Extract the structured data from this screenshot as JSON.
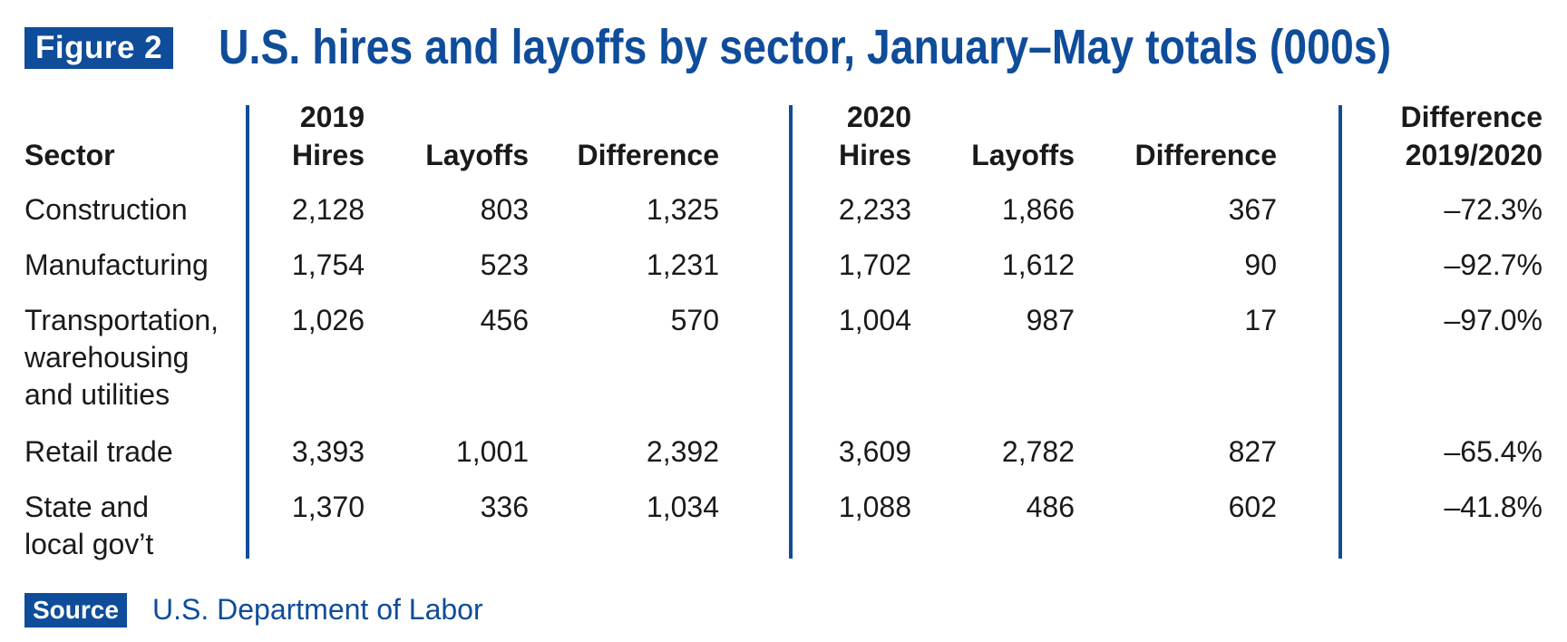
{
  "figure_label": "Figure 2",
  "title": "U.S. hires and layoffs by sector, January–May totals (000s)",
  "headers": {
    "sector": "Sector",
    "year_2019": "2019",
    "year_2020": "2020",
    "hires": "Hires",
    "layoffs": "Layoffs",
    "difference": "Difference",
    "diff_pct_line1": "Difference",
    "diff_pct_line2": "2019/2020"
  },
  "rows": [
    {
      "sector_lines": [
        "Construction"
      ],
      "hires_2019": "2,128",
      "layoffs_2019": "803",
      "diff_2019": "1,325",
      "hires_2020": "2,233",
      "layoffs_2020": "1,866",
      "diff_2020": "367",
      "diff_pct": "–72.3%"
    },
    {
      "sector_lines": [
        "Manufacturing"
      ],
      "hires_2019": "1,754",
      "layoffs_2019": "523",
      "diff_2019": "1,231",
      "hires_2020": "1,702",
      "layoffs_2020": "1,612",
      "diff_2020": "90",
      "diff_pct": "–92.7%"
    },
    {
      "sector_lines": [
        "Transportation,",
        "warehousing",
        "and utilities"
      ],
      "hires_2019": "1,026",
      "layoffs_2019": "456",
      "diff_2019": "570",
      "hires_2020": "1,004",
      "layoffs_2020": "987",
      "diff_2020": "17",
      "diff_pct": "–97.0%"
    },
    {
      "sector_lines": [
        "Retail trade"
      ],
      "hires_2019": "3,393",
      "layoffs_2019": "1,001",
      "diff_2019": "2,392",
      "hires_2020": "3,609",
      "layoffs_2020": "2,782",
      "diff_2020": "827",
      "diff_pct": "–65.4%"
    },
    {
      "sector_lines": [
        "State and",
        "local gov’t"
      ],
      "hires_2019": "1,370",
      "layoffs_2019": "336",
      "diff_2019": "1,034",
      "hires_2020": "1,088",
      "layoffs_2020": "486",
      "diff_2020": "602",
      "diff_pct": "–41.8%"
    }
  ],
  "source_label": "Source",
  "source_text": "U.S. Department of Labor",
  "colors": {
    "accent": "#0f4c9a",
    "text": "#1a1a1a"
  }
}
